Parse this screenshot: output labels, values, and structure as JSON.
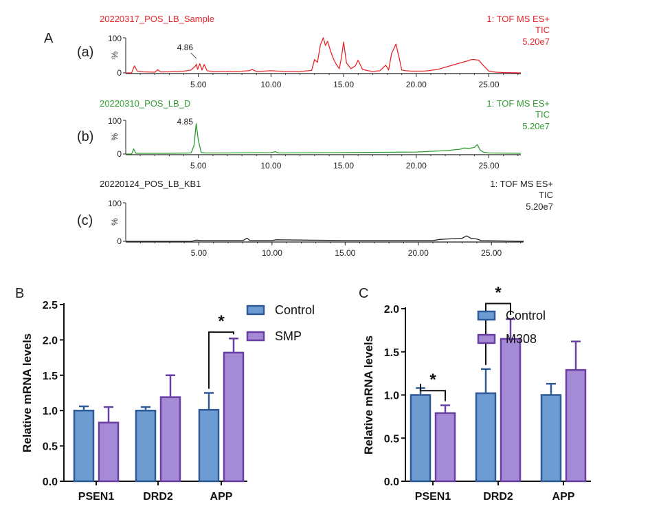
{
  "panel_labels": {
    "A": "A",
    "B": "B",
    "C": "C"
  },
  "chart_data": [
    {
      "type": "line",
      "id": "ms-a",
      "trace_label": "(a)",
      "title": "20220317_POS_LB_Sample",
      "mode_line1": "1: TOF MS ES+",
      "mode_line2": "TIC",
      "mode_line3": "5.20e7",
      "peak_label": "4.86",
      "peak_at": 4.86,
      "color": "#e8262a",
      "xlim": [
        0,
        27.2
      ],
      "ylim": [
        0,
        100
      ],
      "ylabel": "%",
      "yticks": [
        "0",
        "100"
      ],
      "xticks": [
        "5.00",
        "10.00",
        "15.00",
        "20.00",
        "25.00"
      ],
      "xtick_values": [
        5,
        10,
        15,
        20,
        25
      ],
      "x": [
        0,
        0.4,
        0.6,
        0.8,
        1.2,
        2.0,
        2.2,
        2.4,
        3.0,
        3.5,
        4.0,
        4.5,
        4.8,
        4.86,
        4.95,
        5.1,
        5.25,
        5.4,
        5.6,
        6.0,
        7.0,
        8.0,
        8.5,
        8.7,
        9.0,
        10.0,
        11.0,
        12.0,
        12.8,
        13.0,
        13.2,
        13.4,
        13.6,
        13.75,
        13.9,
        14.1,
        14.3,
        14.5,
        14.7,
        14.85,
        15.0,
        15.2,
        15.5,
        15.8,
        16.0,
        16.3,
        16.7,
        17.0,
        17.5,
        17.9,
        18.1,
        18.3,
        18.6,
        18.85,
        19.0,
        19.3,
        19.7,
        20.0,
        20.5,
        21.0,
        21.5,
        22.0,
        22.5,
        23.0,
        23.5,
        23.8,
        24.0,
        24.3,
        24.6,
        25.0,
        25.5,
        26.0,
        27.2
      ],
      "y": [
        0,
        0,
        20,
        5,
        3,
        2,
        9,
        3,
        3,
        4,
        5,
        8,
        20,
        25,
        10,
        26,
        8,
        24,
        6,
        4,
        4,
        5,
        6,
        10,
        4,
        6,
        4,
        4,
        7,
        38,
        30,
        80,
        100,
        78,
        90,
        62,
        40,
        24,
        12,
        44,
        88,
        28,
        12,
        20,
        36,
        10,
        6,
        4,
        6,
        22,
        8,
        55,
        82,
        38,
        8,
        6,
        5,
        5,
        5,
        7,
        10,
        16,
        22,
        28,
        34,
        38,
        38,
        36,
        22,
        5,
        2,
        1,
        0
      ]
    },
    {
      "type": "line",
      "id": "ms-b",
      "trace_label": "(b)",
      "title": "20220310_POS_LB_D",
      "mode_line1": "1: TOF MS ES+",
      "mode_line2": "TIC",
      "mode_line3": "5.20e7",
      "peak_label": "4.85",
      "peak_at": 4.85,
      "color": "#2c9c2f",
      "xlim": [
        0,
        27.2
      ],
      "ylim": [
        0,
        100
      ],
      "ylabel": "%",
      "yticks": [
        "0",
        "100"
      ],
      "xticks": [
        "5.00",
        "10.00",
        "15.00",
        "20.00",
        "25.00"
      ],
      "xtick_values": [
        5,
        10,
        15,
        20,
        25
      ],
      "x": [
        0,
        0.4,
        0.55,
        0.7,
        1.0,
        3.0,
        4.5,
        4.7,
        4.85,
        5.0,
        5.2,
        5.5,
        7.0,
        10.0,
        10.3,
        10.5,
        15.0,
        20.0,
        21.0,
        22.0,
        23.0,
        23.3,
        23.6,
        24.0,
        24.2,
        24.4,
        24.6,
        25.0,
        27.2
      ],
      "y": [
        0,
        0,
        15,
        2,
        2,
        2,
        3,
        25,
        90,
        40,
        4,
        3,
        3,
        4,
        7,
        3,
        4,
        6,
        8,
        10,
        14,
        18,
        16,
        20,
        28,
        12,
        6,
        3,
        2
      ]
    },
    {
      "type": "line",
      "id": "ms-c",
      "trace_label": "(c)",
      "title": "20220124_POS_LB_KB1",
      "mode_line1": "1: TOF MS ES+",
      "mode_line2": "TIC",
      "mode_line3": "5.20e7",
      "color": "#222222",
      "xlim": [
        0,
        27.2
      ],
      "ylim": [
        0,
        100
      ],
      "ylabel": "%",
      "yticks": [
        "0",
        "100"
      ],
      "xticks": [
        "5.00",
        "10.00",
        "15.00",
        "20.00",
        "25.00"
      ],
      "xtick_values": [
        5,
        10,
        15,
        20,
        25
      ],
      "x": [
        0,
        4.5,
        4.8,
        5.2,
        8.0,
        8.3,
        8.5,
        10.0,
        10.3,
        15.0,
        20.0,
        21.0,
        21.5,
        22.0,
        23.0,
        23.3,
        23.6,
        24.0,
        24.3,
        27.2
      ],
      "y": [
        0,
        0,
        3,
        2,
        2,
        8,
        2,
        2,
        4,
        2,
        2,
        2,
        5,
        6,
        8,
        14,
        8,
        6,
        2,
        0
      ]
    },
    {
      "type": "bar",
      "id": "bar-b",
      "categories": [
        "PSEN1",
        "DRD2",
        "APP"
      ],
      "series": [
        {
          "name": "Control",
          "values": [
            1.0,
            1.0,
            1.01
          ],
          "errors": [
            0.06,
            0.05,
            0.24
          ],
          "fill": "#6d9cd3",
          "stroke": "#2e5b96"
        },
        {
          "name": "SMP",
          "values": [
            0.83,
            1.19,
            1.82
          ],
          "errors": [
            0.22,
            0.31,
            0.2
          ],
          "fill": "#a58ad6",
          "stroke": "#6a3fa3"
        }
      ],
      "ylabel": "Relative mRNA levels",
      "ylim": [
        0,
        2.5
      ],
      "yticks": [
        "0.0",
        "0.5",
        "1.0",
        "1.5",
        "2.0",
        "2.5"
      ],
      "ytick_values": [
        0,
        0.5,
        1.0,
        1.5,
        2.0,
        2.5
      ],
      "significance": [
        {
          "category": "APP",
          "label": "*",
          "level": 2.11
        }
      ]
    },
    {
      "type": "bar",
      "id": "bar-c",
      "categories": [
        "PSEN1",
        "DRD2",
        "APP"
      ],
      "series": [
        {
          "name": "Control",
          "values": [
            1.0,
            1.02,
            1.0
          ],
          "errors": [
            0.08,
            0.28,
            0.13
          ],
          "fill": "#6d9cd3",
          "stroke": "#2e5b96"
        },
        {
          "name": "M308",
          "values": [
            0.79,
            1.65,
            1.29
          ],
          "errors": [
            0.09,
            0.23,
            0.33
          ],
          "fill": "#a58ad6",
          "stroke": "#6a3fa3"
        }
      ],
      "ylabel": "Relative mRNA levels",
      "ylim": [
        0,
        2.0
      ],
      "yticks": [
        "0.0",
        "0.5",
        "1.0",
        "1.5",
        "2.0"
      ],
      "ytick_values": [
        0,
        0.5,
        1.0,
        1.5,
        2.0
      ],
      "significance": [
        {
          "category": "PSEN1",
          "label": "*",
          "level": 1.05
        },
        {
          "category": "DRD2",
          "label": "*",
          "level": 2.06
        }
      ]
    }
  ]
}
